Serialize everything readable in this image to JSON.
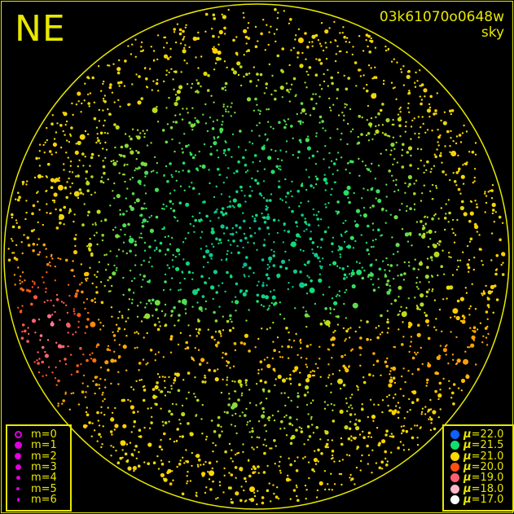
{
  "header": {
    "direction": "NE",
    "frame_id": "03k61070o0648w",
    "frame_type": "sky"
  },
  "legend_magnitude": {
    "items": [
      {
        "label": "m=0",
        "style": "ring"
      },
      {
        "label": "m=1"
      },
      {
        "label": "m=2"
      },
      {
        "label": "m=3"
      },
      {
        "label": "m=4"
      },
      {
        "label": "m=5"
      },
      {
        "label": "m=6"
      }
    ],
    "color": "#e000e0"
  },
  "legend_brightness": {
    "symbol": "μ",
    "items": [
      {
        "label": "=22.0",
        "value": 22.0,
        "color": "#1060ff"
      },
      {
        "label": "=21.5",
        "value": 21.5,
        "color": "#10e070"
      },
      {
        "label": "=21.0",
        "value": 21.0,
        "color": "#ffd800"
      },
      {
        "label": "=20.0",
        "value": 20.0,
        "color": "#ff5010"
      },
      {
        "label": "=19.0",
        "value": 19.0,
        "color": "#ff6070"
      },
      {
        "label": "=18.0",
        "value": 18.0,
        "color": "#ffb8c8"
      },
      {
        "label": "=17.0",
        "value": 17.0,
        "color": "#ffffff"
      }
    ]
  },
  "colors": {
    "frame": "#e8e800",
    "background": "#000000"
  },
  "chart_data": {
    "type": "scatter",
    "title": "",
    "projection": "all-sky circular",
    "marker_size_encodes": "star magnitude m (0–6)",
    "marker_color_encodes": "sky brightness μ (17.0–22.0)",
    "summary": {
      "zenith_region_mu": 21.6,
      "horizon_mu": 21.0,
      "low_band_mu": 20.4,
      "brightest_edge_mu": 19.6
    }
  }
}
